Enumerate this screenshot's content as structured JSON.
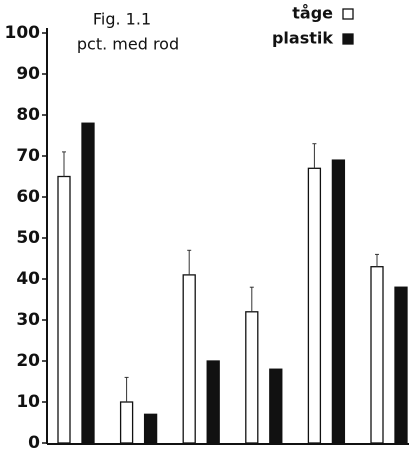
{
  "chart_data": {
    "type": "bar",
    "title": "Fig. 1.1",
    "subtitle": "pct. med rod",
    "categories": [
      null,
      null,
      null,
      null,
      null,
      null
    ],
    "series": [
      {
        "name": "tåge",
        "color": "#ffffff",
        "values": [
          65,
          10,
          41,
          32,
          67,
          43
        ],
        "errors": [
          6,
          6,
          6,
          6,
          6,
          3
        ]
      },
      {
        "name": "plastik",
        "color": "#111111",
        "values": [
          78,
          7,
          20,
          18,
          69,
          38
        ]
      }
    ],
    "ylim": [
      0,
      100
    ],
    "yticks": [
      0,
      10,
      20,
      30,
      40,
      50,
      60,
      70,
      80,
      90,
      100
    ],
    "grid": false,
    "legend": "top-right"
  }
}
